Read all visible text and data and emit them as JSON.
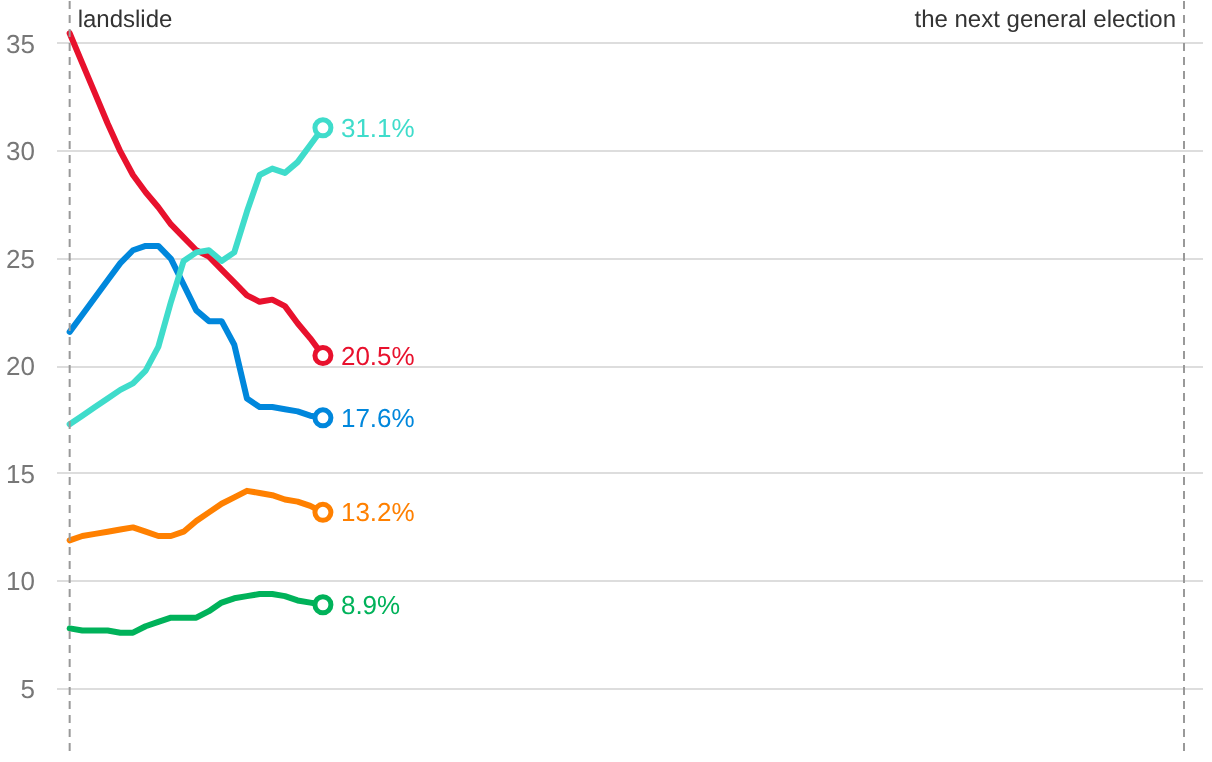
{
  "chart_data": {
    "type": "line",
    "categories": [
      null,
      null,
      null,
      null,
      null,
      null,
      null,
      null,
      null,
      null,
      null,
      null,
      null,
      null,
      null,
      null,
      null,
      null,
      null,
      null,
      null,
      null,
      null,
      null,
      null,
      null,
      null,
      null,
      null,
      null,
      null,
      null,
      null,
      null,
      null,
      null,
      null,
      null,
      null,
      null,
      null,
      null,
      null,
      null,
      null,
      null,
      null,
      null,
      null,
      null,
      null,
      null,
      null,
      null,
      null,
      null,
      null,
      null,
      null,
      null,
      null,
      null,
      null,
      null,
      null,
      null,
      null,
      null,
      null,
      null,
      null,
      null,
      null,
      null,
      null,
      null,
      null,
      null,
      null,
      null,
      null,
      null,
      null,
      null,
      null,
      null,
      null,
      null,
      null
    ],
    "series": [
      {
        "color": "#e8112d",
        "values": [
          35.5,
          34.1,
          32.7,
          31.3,
          30.0,
          28.9,
          28.1,
          27.4,
          26.6,
          26.0,
          25.4,
          25.1,
          24.5,
          23.9,
          23.3,
          23.0,
          23.1,
          22.8,
          22.0,
          21.3,
          20.5,
          null,
          null,
          null,
          null,
          null,
          null,
          null,
          null,
          null,
          null,
          null,
          null,
          null,
          null,
          null,
          null,
          null,
          null,
          null,
          null,
          null,
          null,
          null,
          null,
          null,
          null,
          null,
          null,
          null,
          null,
          null,
          null,
          null,
          null,
          null,
          null,
          null,
          null,
          null,
          null,
          null,
          null,
          null,
          null,
          null,
          null,
          null,
          null,
          null,
          null,
          null,
          null,
          null,
          null,
          null,
          null,
          null,
          null,
          null,
          null,
          null,
          null,
          null,
          null,
          null,
          null,
          null,
          null
        ],
        "value_labels": [
          null,
          null,
          null,
          null,
          null,
          null,
          null,
          null,
          null,
          null,
          null,
          null,
          null,
          null,
          null,
          null,
          null,
          null,
          null,
          null,
          "20.5%",
          null,
          null,
          null,
          null,
          null,
          null,
          null,
          null,
          null,
          null,
          null,
          null,
          null,
          null,
          null,
          null,
          null,
          null,
          null,
          null,
          null,
          null,
          null,
          null,
          null,
          null,
          null,
          null,
          null,
          null,
          null,
          null,
          null,
          null,
          null,
          null,
          null,
          null,
          null,
          null,
          null,
          null,
          null,
          null,
          null,
          null,
          null,
          null,
          null,
          null,
          null,
          null,
          null,
          null,
          null,
          null,
          null,
          null,
          null,
          null,
          null,
          null,
          null,
          null,
          null,
          null,
          null,
          null
        ]
      },
      {
        "color": "#0087dc",
        "values": [
          21.6,
          22.4,
          23.2,
          24.0,
          24.8,
          25.4,
          25.6,
          25.6,
          25.0,
          23.8,
          22.6,
          22.1,
          22.1,
          21.0,
          18.5,
          18.1,
          18.1,
          18.0,
          17.9,
          17.7,
          17.6,
          null,
          null,
          null,
          null,
          null,
          null,
          null,
          null,
          null,
          null,
          null,
          null,
          null,
          null,
          null,
          null,
          null,
          null,
          null,
          null,
          null,
          null,
          null,
          null,
          null,
          null,
          null,
          null,
          null,
          null,
          null,
          null,
          null,
          null,
          null,
          null,
          null,
          null,
          null,
          null,
          null,
          null,
          null,
          null,
          null,
          null,
          null,
          null,
          null,
          null,
          null,
          null,
          null,
          null,
          null,
          null,
          null,
          null,
          null,
          null,
          null,
          null,
          null,
          null,
          null,
          null,
          null,
          null
        ],
        "value_labels": [
          null,
          null,
          null,
          null,
          null,
          null,
          null,
          null,
          null,
          null,
          null,
          null,
          null,
          null,
          null,
          null,
          null,
          null,
          null,
          null,
          "17.6%",
          null,
          null,
          null,
          null,
          null,
          null,
          null,
          null,
          null,
          null,
          null,
          null,
          null,
          null,
          null,
          null,
          null,
          null,
          null,
          null,
          null,
          null,
          null,
          null,
          null,
          null,
          null,
          null,
          null,
          null,
          null,
          null,
          null,
          null,
          null,
          null,
          null,
          null,
          null,
          null,
          null,
          null,
          null,
          null,
          null,
          null,
          null,
          null,
          null,
          null,
          null,
          null,
          null,
          null,
          null,
          null,
          null,
          null,
          null,
          null,
          null,
          null,
          null,
          null,
          null,
          null,
          null,
          null
        ]
      },
      {
        "color": "#3fdccb",
        "values": [
          17.3,
          17.7,
          18.1,
          18.5,
          18.9,
          19.2,
          19.8,
          20.9,
          23.0,
          24.9,
          25.3,
          25.4,
          24.9,
          25.3,
          27.2,
          28.9,
          29.2,
          29.0,
          29.5,
          30.3,
          31.1,
          null,
          null,
          null,
          null,
          null,
          null,
          null,
          null,
          null,
          null,
          null,
          null,
          null,
          null,
          null,
          null,
          null,
          null,
          null,
          null,
          null,
          null,
          null,
          null,
          null,
          null,
          null,
          null,
          null,
          null,
          null,
          null,
          null,
          null,
          null,
          null,
          null,
          null,
          null,
          null,
          null,
          null,
          null,
          null,
          null,
          null,
          null,
          null,
          null,
          null,
          null,
          null,
          null,
          null,
          null,
          null,
          null,
          null,
          null,
          null,
          null,
          null,
          null,
          null,
          null,
          null,
          null,
          null
        ],
        "value_labels": [
          null,
          null,
          null,
          null,
          null,
          null,
          null,
          null,
          null,
          null,
          null,
          null,
          null,
          null,
          null,
          null,
          null,
          null,
          null,
          null,
          "31.1%",
          null,
          null,
          null,
          null,
          null,
          null,
          null,
          null,
          null,
          null,
          null,
          null,
          null,
          null,
          null,
          null,
          null,
          null,
          null,
          null,
          null,
          null,
          null,
          null,
          null,
          null,
          null,
          null,
          null,
          null,
          null,
          null,
          null,
          null,
          null,
          null,
          null,
          null,
          null,
          null,
          null,
          null,
          null,
          null,
          null,
          null,
          null,
          null,
          null,
          null,
          null,
          null,
          null,
          null,
          null,
          null,
          null,
          null,
          null,
          null,
          null,
          null,
          null,
          null,
          null,
          null,
          null,
          null
        ]
      },
      {
        "color": "#ff8000",
        "values": [
          11.9,
          12.1,
          12.2,
          12.3,
          12.4,
          12.5,
          12.3,
          12.1,
          12.1,
          12.3,
          12.8,
          13.2,
          13.6,
          13.9,
          14.2,
          14.1,
          14.0,
          13.8,
          13.7,
          13.5,
          13.2,
          null,
          null,
          null,
          null,
          null,
          null,
          null,
          null,
          null,
          null,
          null,
          null,
          null,
          null,
          null,
          null,
          null,
          null,
          null,
          null,
          null,
          null,
          null,
          null,
          null,
          null,
          null,
          null,
          null,
          null,
          null,
          null,
          null,
          null,
          null,
          null,
          null,
          null,
          null,
          null,
          null,
          null,
          null,
          null,
          null,
          null,
          null,
          null,
          null,
          null,
          null,
          null,
          null,
          null,
          null,
          null,
          null,
          null,
          null,
          null,
          null,
          null,
          null,
          null,
          null,
          null,
          null,
          null
        ],
        "value_labels": [
          null,
          null,
          null,
          null,
          null,
          null,
          null,
          null,
          null,
          null,
          null,
          null,
          null,
          null,
          null,
          null,
          null,
          null,
          null,
          null,
          "13.2%",
          null,
          null,
          null,
          null,
          null,
          null,
          null,
          null,
          null,
          null,
          null,
          null,
          null,
          null,
          null,
          null,
          null,
          null,
          null,
          null,
          null,
          null,
          null,
          null,
          null,
          null,
          null,
          null,
          null,
          null,
          null,
          null,
          null,
          null,
          null,
          null,
          null,
          null,
          null,
          null,
          null,
          null,
          null,
          null,
          null,
          null,
          null,
          null,
          null,
          null,
          null,
          null,
          null,
          null,
          null,
          null,
          null,
          null,
          null,
          null,
          null,
          null,
          null,
          null,
          null,
          null,
          null,
          null
        ]
      },
      {
        "color": "#00b25a",
        "values": [
          7.8,
          7.7,
          7.7,
          7.7,
          7.6,
          7.6,
          7.9,
          8.1,
          8.3,
          8.3,
          8.3,
          8.6,
          9.0,
          9.2,
          9.3,
          9.4,
          9.4,
          9.3,
          9.1,
          9.0,
          8.9,
          null,
          null,
          null,
          null,
          null,
          null,
          null,
          null,
          null,
          null,
          null,
          null,
          null,
          null,
          null,
          null,
          null,
          null,
          null,
          null,
          null,
          null,
          null,
          null,
          null,
          null,
          null,
          null,
          null,
          null,
          null,
          null,
          null,
          null,
          null,
          null,
          null,
          null,
          null,
          null,
          null,
          null,
          null,
          null,
          null,
          null,
          null,
          null,
          null,
          null,
          null,
          null,
          null,
          null,
          null,
          null,
          null,
          null,
          null,
          null,
          null,
          null,
          null,
          null,
          null,
          null,
          null,
          null
        ],
        "value_labels": [
          null,
          null,
          null,
          null,
          null,
          null,
          null,
          null,
          null,
          null,
          null,
          null,
          null,
          null,
          null,
          null,
          null,
          null,
          null,
          null,
          "8.9%",
          null,
          null,
          null,
          null,
          null,
          null,
          null,
          null,
          null,
          null,
          null,
          null,
          null,
          null,
          null,
          null,
          null,
          null,
          null,
          null,
          null,
          null,
          null,
          null,
          null,
          null,
          null,
          null,
          null,
          null,
          null,
          null,
          null,
          null,
          null,
          null,
          null,
          null,
          null,
          null,
          null,
          null,
          null,
          null,
          null,
          null,
          null,
          null,
          null,
          null,
          null,
          null,
          null,
          null,
          null,
          null,
          null,
          null,
          null,
          null,
          null,
          null,
          null,
          null,
          null,
          null,
          null,
          null
        ]
      }
    ],
    "ylim": [
      2,
      37
    ],
    "yticks": [
      5,
      10,
      15,
      20,
      25,
      30,
      35
    ],
    "tick_labels": "y",
    "grid": "y",
    "line_style": "solid",
    "ref_lines": [
      {
        "axis": "x",
        "label": "landslide",
        "color": "#999999",
        "line_style": "dashed"
      },
      {
        "axis": "x",
        "label": "the next general election",
        "color": "#999999",
        "line_style": "dashed"
      }
    ]
  }
}
